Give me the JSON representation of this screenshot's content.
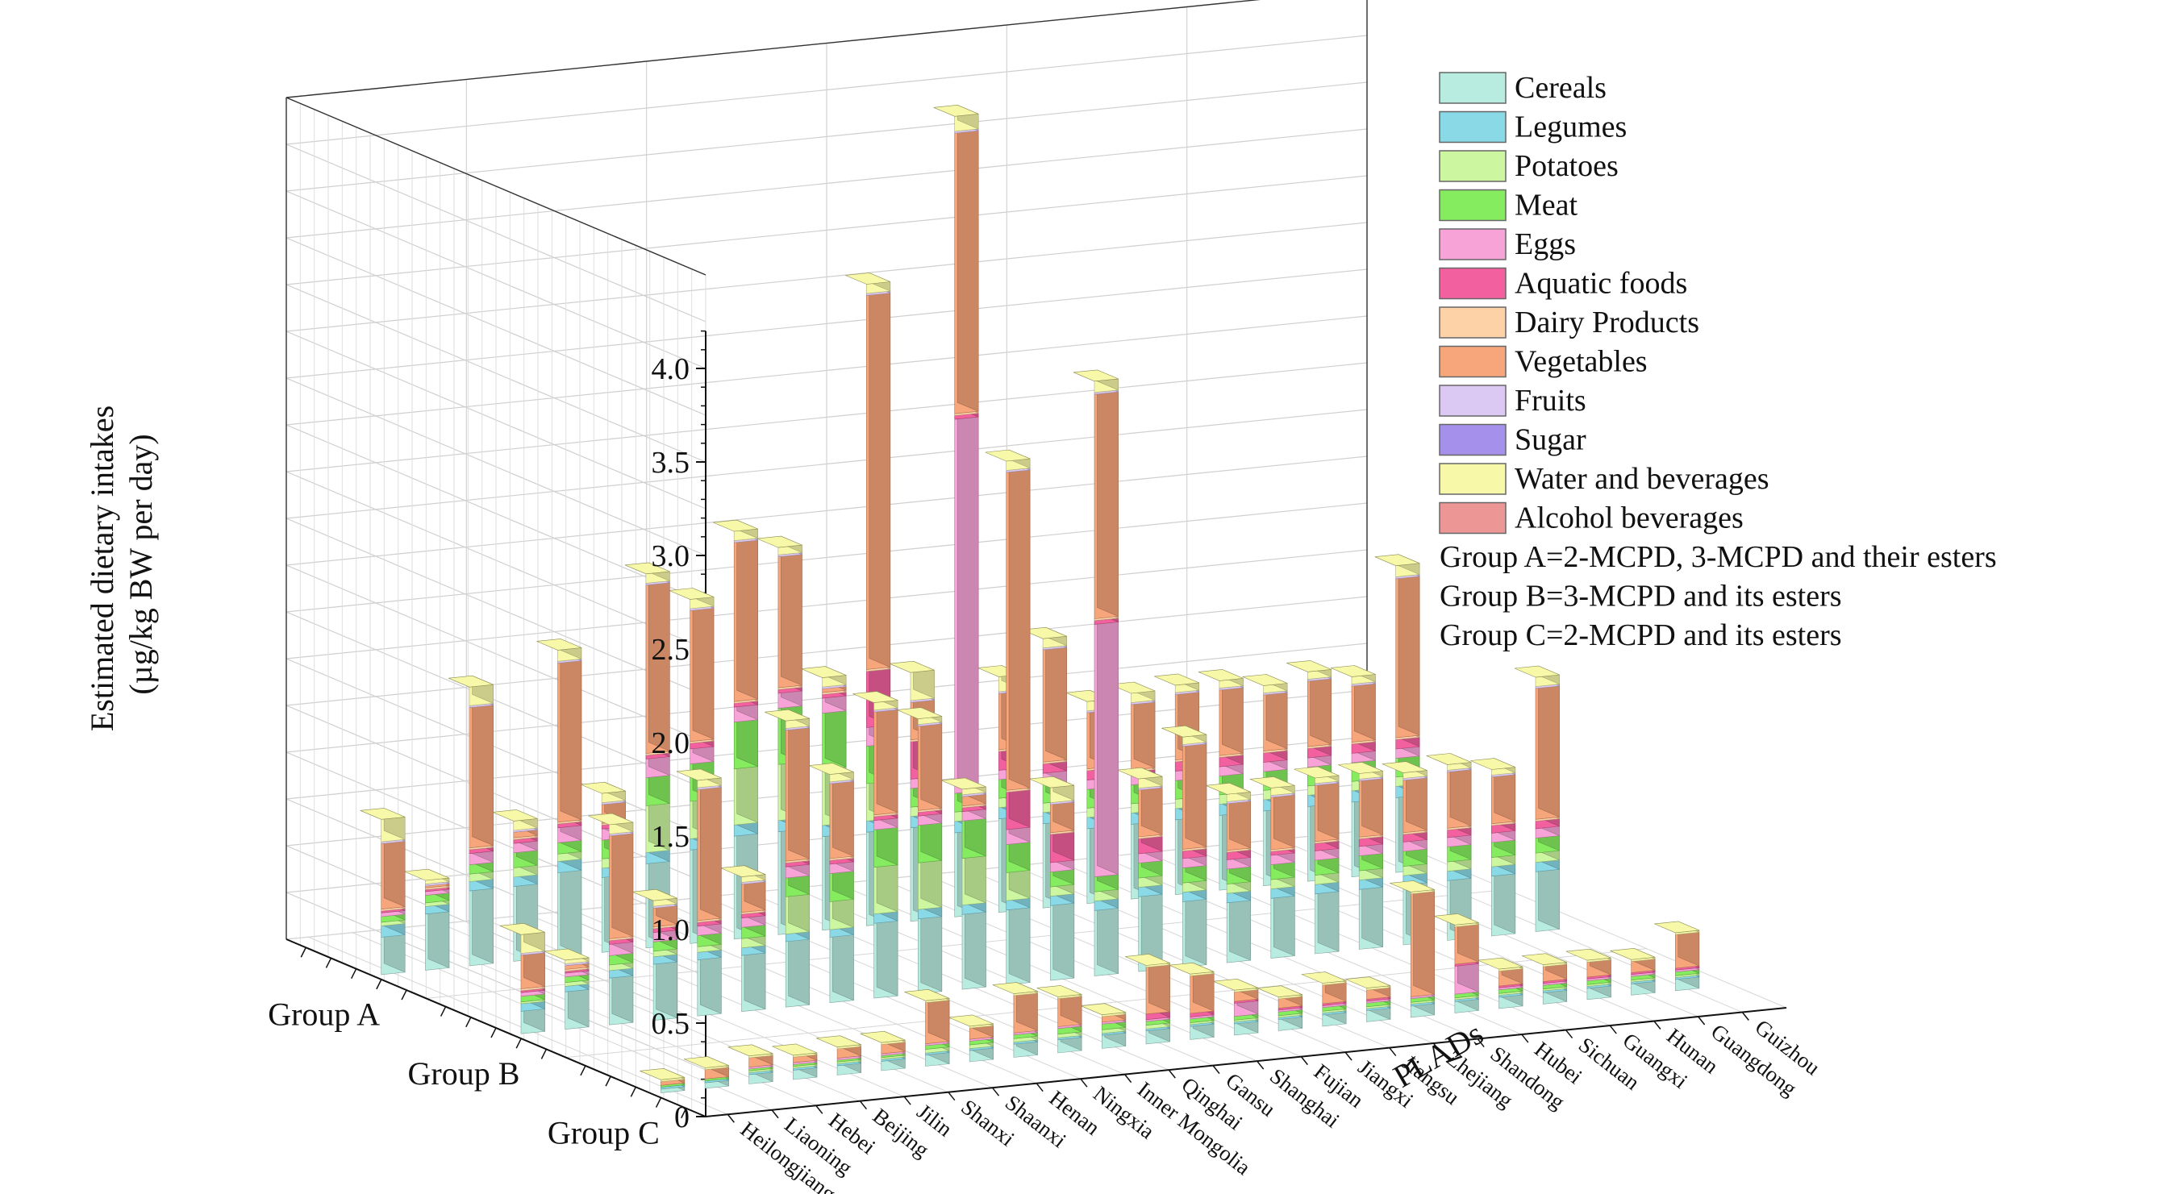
{
  "chart_data": {
    "type": "bar",
    "title": "",
    "ylabel_lines": [
      "Estimated dietary intakes",
      "(µg/kg BW per day)"
    ],
    "xlabel": "PLADs",
    "yticks": [
      "0",
      "0.5",
      "1.0",
      "1.5",
      "2.0",
      "2.5",
      "3.0",
      "3.5",
      "4.0"
    ],
    "ylim": [
      0,
      4.2
    ],
    "grid": true,
    "legend_position": "right",
    "groups": [
      "Group A",
      "Group B",
      "Group C"
    ],
    "categories": [
      "Heilongjiang",
      "Liaoning",
      "Hebei",
      "Beijing",
      "Jilin",
      "Shanxi",
      "Shaanxi",
      "Henan",
      "Ningxia",
      "Inner Mongolia",
      "Qinghai",
      "Gansu",
      "Shanghai",
      "Fujian",
      "Jiangxi",
      "Jiangsu",
      "Zhejiang",
      "Shandong",
      "Hubei",
      "Sichuan",
      "Guangxi",
      "Hunan",
      "Guangdong",
      "Guizhou"
    ],
    "series": [
      {
        "name": "Cereals",
        "color": "#b9ece0"
      },
      {
        "name": "Legumes",
        "color": "#8ad9e6"
      },
      {
        "name": "Potatoes",
        "color": "#ccf7a0"
      },
      {
        "name": "Meat",
        "color": "#86ec5f"
      },
      {
        "name": "Eggs",
        "color": "#f8a3d8"
      },
      {
        "name": "Aquatic foods",
        "color": "#f2609f"
      },
      {
        "name": "Dairy Products",
        "color": "#fcd2a6"
      },
      {
        "name": "Vegetables",
        "color": "#f7a57a"
      },
      {
        "name": "Fruits",
        "color": "#dcc9f3"
      },
      {
        "name": "Sugar",
        "color": "#a590ec"
      },
      {
        "name": "Water and beverages",
        "color": "#f8f9a8"
      },
      {
        "name": "Alcohol beverages",
        "color": "#ec9795"
      }
    ],
    "values": {
      "Group A": [
        [
          0.2,
          0.06,
          0.02,
          0.03,
          0.02,
          0.01,
          0.01,
          0.35,
          0.01,
          0.0,
          0.12,
          0.0
        ],
        [
          0.3,
          0.04,
          0.02,
          0.04,
          0.02,
          0.01,
          0.01,
          0.01,
          0.01,
          0.0,
          0.02,
          0.0
        ],
        [
          0.4,
          0.05,
          0.04,
          0.05,
          0.06,
          0.02,
          0.01,
          0.75,
          0.01,
          0.0,
          0.1,
          0.0
        ],
        [
          0.4,
          0.05,
          0.05,
          0.08,
          0.05,
          0.02,
          0.01,
          0.03,
          0.01,
          0.0,
          0.05,
          0.0
        ],
        [
          0.45,
          0.06,
          0.04,
          0.06,
          0.08,
          0.02,
          0.01,
          0.85,
          0.01,
          0.0,
          0.06,
          0.0
        ],
        [
          0.4,
          0.05,
          0.05,
          0.1,
          0.06,
          0.02,
          0.01,
          0.1,
          0.01,
          0.0,
          0.05,
          0.0
        ],
        [
          0.45,
          0.06,
          0.25,
          0.15,
          0.1,
          0.02,
          0.01,
          0.9,
          0.01,
          0.0,
          0.05,
          0.0
        ],
        [
          0.5,
          0.06,
          0.2,
          0.2,
          0.08,
          0.03,
          0.01,
          0.7,
          0.01,
          0.0,
          0.05,
          0.0
        ],
        [
          0.55,
          0.06,
          0.3,
          0.25,
          0.08,
          0.02,
          0.01,
          0.85,
          0.01,
          0.0,
          0.05,
          0.0
        ],
        [
          0.55,
          0.06,
          0.3,
          0.3,
          0.08,
          0.02,
          0.01,
          0.7,
          0.01,
          0.0,
          0.04,
          0.0
        ],
        [
          0.5,
          0.06,
          0.3,
          0.3,
          0.08,
          0.02,
          0.01,
          0.02,
          0.01,
          0.0,
          0.05,
          0.0
        ],
        [
          0.5,
          0.06,
          0.2,
          0.2,
          0.1,
          0.3,
          0.01,
          2.0,
          0.01,
          0.0,
          0.05,
          0.0
        ],
        [
          0.5,
          0.06,
          0.05,
          0.1,
          0.05,
          0.2,
          0.01,
          0.2,
          0.01,
          0.0,
          0.15,
          0.0
        ],
        [
          0.45,
          0.06,
          0.05,
          0.1,
          2.0,
          0.02,
          0.01,
          1.5,
          0.01,
          0.0,
          0.08,
          0.0
        ],
        [
          0.5,
          0.06,
          0.05,
          0.1,
          0.05,
          0.1,
          0.01,
          0.3,
          0.01,
          0.0,
          0.08,
          0.0
        ],
        [
          0.45,
          0.06,
          0.05,
          0.1,
          0.06,
          0.05,
          0.01,
          0.6,
          0.01,
          0.0,
          0.05,
          0.0
        ],
        [
          0.4,
          0.06,
          0.05,
          0.1,
          0.05,
          0.05,
          0.01,
          0.3,
          0.01,
          0.0,
          0.05,
          0.0
        ],
        [
          0.4,
          0.06,
          0.05,
          0.1,
          0.05,
          0.02,
          0.01,
          0.35,
          0.01,
          0.0,
          0.05,
          0.0
        ],
        [
          0.4,
          0.06,
          0.05,
          0.1,
          0.05,
          0.05,
          0.01,
          0.35,
          0.01,
          0.0,
          0.04,
          0.0
        ],
        [
          0.4,
          0.06,
          0.05,
          0.1,
          0.05,
          0.05,
          0.01,
          0.35,
          0.01,
          0.0,
          0.04,
          0.0
        ],
        [
          0.4,
          0.06,
          0.05,
          0.1,
          0.05,
          0.05,
          0.01,
          0.3,
          0.01,
          0.0,
          0.04,
          0.0
        ],
        [
          0.4,
          0.06,
          0.05,
          0.1,
          0.05,
          0.05,
          0.01,
          0.35,
          0.01,
          0.0,
          0.04,
          0.0
        ],
        [
          0.4,
          0.06,
          0.05,
          0.1,
          0.05,
          0.05,
          0.01,
          0.3,
          0.01,
          0.0,
          0.04,
          0.0
        ],
        [
          0.4,
          0.06,
          0.05,
          0.1,
          0.05,
          0.05,
          0.01,
          0.85,
          0.01,
          0.0,
          0.06,
          0.0
        ]
      ],
      "Group B": [
        [
          0.12,
          0.04,
          0.01,
          0.03,
          0.02,
          0.01,
          0.01,
          0.18,
          0.01,
          0.0,
          0.1,
          0.0
        ],
        [
          0.2,
          0.03,
          0.02,
          0.03,
          0.02,
          0.01,
          0.01,
          0.02,
          0.01,
          0.0,
          0.02,
          0.0
        ],
        [
          0.25,
          0.04,
          0.03,
          0.05,
          0.06,
          0.02,
          0.01,
          0.55,
          0.01,
          0.0,
          0.05,
          0.0
        ],
        [
          0.3,
          0.04,
          0.03,
          0.05,
          0.05,
          0.02,
          0.01,
          0.1,
          0.01,
          0.0,
          0.03,
          0.0
        ],
        [
          0.3,
          0.04,
          0.03,
          0.06,
          0.05,
          0.02,
          0.01,
          0.7,
          0.01,
          0.0,
          0.04,
          0.0
        ],
        [
          0.3,
          0.04,
          0.05,
          0.06,
          0.05,
          0.02,
          0.01,
          0.15,
          0.01,
          0.0,
          0.03,
          0.0
        ],
        [
          0.35,
          0.04,
          0.2,
          0.1,
          0.06,
          0.02,
          0.01,
          0.7,
          0.01,
          0.0,
          0.04,
          0.0
        ],
        [
          0.35,
          0.04,
          0.15,
          0.15,
          0.05,
          0.02,
          0.01,
          0.4,
          0.01,
          0.0,
          0.04,
          0.0
        ],
        [
          0.4,
          0.05,
          0.25,
          0.2,
          0.05,
          0.02,
          0.01,
          0.55,
          0.01,
          0.0,
          0.04,
          0.0
        ],
        [
          0.4,
          0.05,
          0.25,
          0.2,
          0.05,
          0.02,
          0.01,
          0.45,
          0.01,
          0.0,
          0.03,
          0.0
        ],
        [
          0.4,
          0.05,
          0.25,
          0.2,
          0.05,
          0.02,
          0.01,
          0.05,
          0.01,
          0.0,
          0.03,
          0.0
        ],
        [
          0.4,
          0.05,
          0.15,
          0.15,
          0.08,
          0.2,
          0.01,
          1.7,
          0.01,
          0.0,
          0.05,
          0.0
        ],
        [
          0.4,
          0.05,
          0.05,
          0.08,
          0.05,
          0.15,
          0.01,
          0.15,
          0.01,
          0.0,
          0.08,
          0.0
        ],
        [
          0.35,
          0.05,
          0.05,
          0.08,
          1.35,
          0.02,
          0.01,
          1.2,
          0.01,
          0.0,
          0.06,
          0.0
        ],
        [
          0.4,
          0.05,
          0.05,
          0.08,
          0.05,
          0.08,
          0.01,
          0.25,
          0.01,
          0.0,
          0.05,
          0.0
        ],
        [
          0.35,
          0.05,
          0.05,
          0.08,
          0.05,
          0.04,
          0.01,
          0.55,
          0.01,
          0.0,
          0.04,
          0.0
        ],
        [
          0.32,
          0.05,
          0.05,
          0.08,
          0.05,
          0.04,
          0.01,
          0.25,
          0.01,
          0.0,
          0.04,
          0.0
        ],
        [
          0.32,
          0.05,
          0.05,
          0.08,
          0.05,
          0.02,
          0.01,
          0.28,
          0.01,
          0.0,
          0.04,
          0.0
        ],
        [
          0.32,
          0.05,
          0.05,
          0.08,
          0.05,
          0.04,
          0.01,
          0.3,
          0.01,
          0.0,
          0.03,
          0.0
        ],
        [
          0.32,
          0.05,
          0.05,
          0.08,
          0.05,
          0.04,
          0.01,
          0.3,
          0.01,
          0.0,
          0.03,
          0.0
        ],
        [
          0.32,
          0.05,
          0.05,
          0.08,
          0.05,
          0.04,
          0.01,
          0.28,
          0.01,
          0.0,
          0.03,
          0.0
        ],
        [
          0.32,
          0.05,
          0.05,
          0.08,
          0.05,
          0.04,
          0.01,
          0.3,
          0.01,
          0.0,
          0.03,
          0.0
        ],
        [
          0.32,
          0.05,
          0.05,
          0.08,
          0.05,
          0.04,
          0.01,
          0.25,
          0.01,
          0.0,
          0.03,
          0.0
        ],
        [
          0.32,
          0.05,
          0.05,
          0.08,
          0.05,
          0.04,
          0.01,
          0.7,
          0.01,
          0.0,
          0.05,
          0.0
        ]
      ],
      "Group C": [
        [
          0.02,
          0.01,
          0.0,
          0.01,
          0.0,
          0.0,
          0.0,
          0.02,
          0.0,
          0.0,
          0.01,
          0.0
        ],
        [
          0.03,
          0.01,
          0.0,
          0.01,
          0.0,
          0.0,
          0.0,
          0.05,
          0.0,
          0.0,
          0.01,
          0.0
        ],
        [
          0.05,
          0.01,
          0.01,
          0.01,
          0.01,
          0.0,
          0.0,
          0.05,
          0.0,
          0.0,
          0.01,
          0.0
        ],
        [
          0.05,
          0.01,
          0.01,
          0.01,
          0.01,
          0.0,
          0.0,
          0.03,
          0.0,
          0.0,
          0.01,
          0.0
        ],
        [
          0.05,
          0.01,
          0.01,
          0.01,
          0.01,
          0.0,
          0.0,
          0.05,
          0.0,
          0.0,
          0.01,
          0.0
        ],
        [
          0.05,
          0.01,
          0.01,
          0.01,
          0.01,
          0.0,
          0.0,
          0.05,
          0.0,
          0.0,
          0.01,
          0.0
        ],
        [
          0.06,
          0.01,
          0.02,
          0.02,
          0.01,
          0.0,
          0.0,
          0.22,
          0.0,
          0.0,
          0.01,
          0.0
        ],
        [
          0.06,
          0.01,
          0.02,
          0.02,
          0.01,
          0.0,
          0.0,
          0.06,
          0.0,
          0.0,
          0.01,
          0.0
        ],
        [
          0.07,
          0.01,
          0.02,
          0.02,
          0.01,
          0.0,
          0.0,
          0.2,
          0.0,
          0.0,
          0.01,
          0.0
        ],
        [
          0.07,
          0.01,
          0.02,
          0.03,
          0.01,
          0.0,
          0.0,
          0.15,
          0.0,
          0.0,
          0.01,
          0.0
        ],
        [
          0.07,
          0.01,
          0.02,
          0.03,
          0.01,
          0.0,
          0.0,
          0.03,
          0.0,
          0.0,
          0.01,
          0.0
        ],
        [
          0.07,
          0.01,
          0.02,
          0.02,
          0.01,
          0.03,
          0.0,
          0.25,
          0.0,
          0.0,
          0.01,
          0.0
        ],
        [
          0.07,
          0.01,
          0.01,
          0.02,
          0.01,
          0.02,
          0.0,
          0.2,
          0.0,
          0.0,
          0.01,
          0.0
        ],
        [
          0.06,
          0.01,
          0.01,
          0.02,
          0.07,
          0.01,
          0.0,
          0.05,
          0.0,
          0.0,
          0.01,
          0.0
        ],
        [
          0.06,
          0.01,
          0.01,
          0.02,
          0.01,
          0.01,
          0.0,
          0.05,
          0.0,
          0.0,
          0.01,
          0.0
        ],
        [
          0.06,
          0.01,
          0.01,
          0.02,
          0.01,
          0.01,
          0.0,
          0.1,
          0.0,
          0.0,
          0.01,
          0.0
        ],
        [
          0.06,
          0.01,
          0.01,
          0.02,
          0.01,
          0.01,
          0.0,
          0.05,
          0.0,
          0.0,
          0.01,
          0.0
        ],
        [
          0.06,
          0.01,
          0.01,
          0.02,
          0.01,
          0.0,
          0.0,
          0.55,
          0.0,
          0.0,
          0.01,
          0.0
        ],
        [
          0.06,
          0.01,
          0.01,
          0.02,
          0.15,
          0.01,
          0.0,
          0.2,
          0.0,
          0.0,
          0.01,
          0.0
        ],
        [
          0.06,
          0.01,
          0.01,
          0.02,
          0.01,
          0.01,
          0.0,
          0.08,
          0.0,
          0.0,
          0.01,
          0.0
        ],
        [
          0.06,
          0.01,
          0.01,
          0.02,
          0.01,
          0.01,
          0.0,
          0.08,
          0.0,
          0.0,
          0.01,
          0.0
        ],
        [
          0.06,
          0.01,
          0.01,
          0.02,
          0.01,
          0.01,
          0.0,
          0.08,
          0.0,
          0.0,
          0.01,
          0.0
        ],
        [
          0.06,
          0.01,
          0.01,
          0.02,
          0.01,
          0.01,
          0.0,
          0.06,
          0.0,
          0.0,
          0.01,
          0.0
        ],
        [
          0.06,
          0.01,
          0.01,
          0.02,
          0.01,
          0.01,
          0.0,
          0.18,
          0.0,
          0.0,
          0.01,
          0.0
        ]
      ]
    }
  },
  "legend_notes": [
    "Group A=2-MCPD, 3-MCPD and their esters",
    "Group B=3-MCPD and its esters",
    "Group C=2-MCPD and its esters"
  ]
}
